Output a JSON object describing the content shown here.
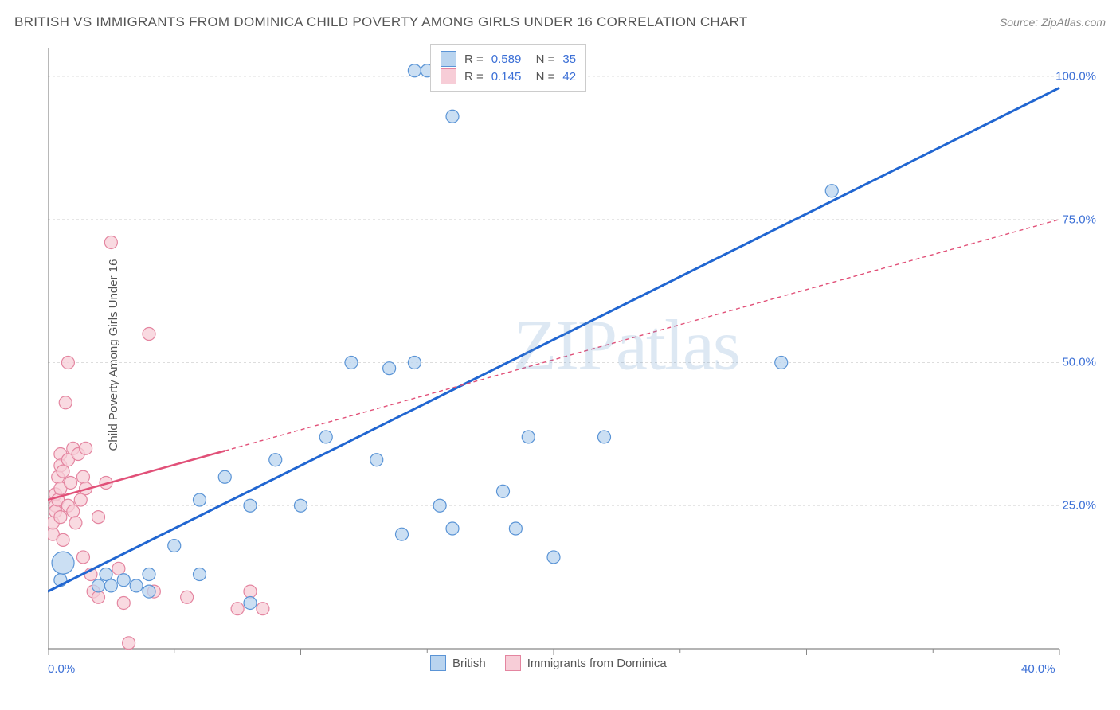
{
  "header": {
    "title": "BRITISH VS IMMIGRANTS FROM DOMINICA CHILD POVERTY AMONG GIRLS UNDER 16 CORRELATION CHART",
    "source": "Source: ZipAtlas.com"
  },
  "watermark": {
    "z": "ZIP",
    "a": "atlas"
  },
  "chart": {
    "type": "scatter",
    "ylabel": "Child Poverty Among Girls Under 16",
    "xlim": [
      0,
      40
    ],
    "ylim": [
      0,
      105
    ],
    "xticks": [
      0,
      10,
      20,
      30,
      40
    ],
    "xtick_labels": [
      "0.0%",
      "",
      "",
      "",
      "40.0%"
    ],
    "yticks": [
      25,
      50,
      75,
      100
    ],
    "ytick_labels": [
      "25.0%",
      "50.0%",
      "75.0%",
      "100.0%"
    ],
    "background_color": "#ffffff",
    "grid_color": "#dddddd",
    "axis_color": "#888888",
    "marker_radius": 8,
    "marker_stroke_width": 1.2,
    "series": [
      {
        "name": "British",
        "fill": "#b9d4ef",
        "stroke": "#5a94d6",
        "line_color": "#2166d1",
        "line_width": 3,
        "line_dash_ext": "4,4",
        "R": "0.589",
        "N": "35",
        "points": [
          [
            0.5,
            12
          ],
          [
            0.6,
            15,
            14
          ],
          [
            2,
            11
          ],
          [
            2.3,
            13
          ],
          [
            2.5,
            11
          ],
          [
            3,
            12
          ],
          [
            3.5,
            11
          ],
          [
            4,
            13
          ],
          [
            4,
            10
          ],
          [
            5,
            18
          ],
          [
            6,
            13
          ],
          [
            6,
            26
          ],
          [
            7,
            30
          ],
          [
            8,
            25
          ],
          [
            8,
            8
          ],
          [
            9,
            33
          ],
          [
            10,
            25
          ],
          [
            11,
            37
          ],
          [
            12,
            50
          ],
          [
            13,
            33
          ],
          [
            13.5,
            49
          ],
          [
            14,
            20
          ],
          [
            14.5,
            50
          ],
          [
            14.5,
            101
          ],
          [
            15,
            101
          ],
          [
            15.5,
            25
          ],
          [
            16,
            21
          ],
          [
            16,
            93
          ],
          [
            18,
            27.5
          ],
          [
            18.5,
            21
          ],
          [
            19,
            37
          ],
          [
            20,
            16
          ],
          [
            22,
            37
          ],
          [
            29,
            50
          ],
          [
            31,
            80
          ]
        ],
        "trend": {
          "x1": 0,
          "y1": 10,
          "x2": 40,
          "y2": 98,
          "solid_until_x": 40
        }
      },
      {
        "name": "Immigrants from Dominica",
        "fill": "#f7cdd7",
        "stroke": "#e485a0",
        "line_color": "#e15078",
        "line_width": 2.5,
        "line_dash_ext": "5,4",
        "R": "0.145",
        "N": "42",
        "points": [
          [
            0.2,
            20
          ],
          [
            0.2,
            22
          ],
          [
            0.3,
            25
          ],
          [
            0.3,
            27
          ],
          [
            0.3,
            24
          ],
          [
            0.4,
            30
          ],
          [
            0.4,
            26
          ],
          [
            0.5,
            34
          ],
          [
            0.5,
            32
          ],
          [
            0.5,
            28
          ],
          [
            0.5,
            23
          ],
          [
            0.6,
            19
          ],
          [
            0.6,
            31
          ],
          [
            0.7,
            43
          ],
          [
            0.8,
            25
          ],
          [
            0.8,
            33
          ],
          [
            0.8,
            50
          ],
          [
            0.9,
            29
          ],
          [
            1,
            35
          ],
          [
            1,
            24
          ],
          [
            1.1,
            22
          ],
          [
            1.2,
            34
          ],
          [
            1.3,
            26
          ],
          [
            1.4,
            30
          ],
          [
            1.4,
            16
          ],
          [
            1.5,
            35
          ],
          [
            1.5,
            28
          ],
          [
            1.7,
            13
          ],
          [
            1.8,
            10
          ],
          [
            2,
            23
          ],
          [
            2,
            9
          ],
          [
            2.3,
            29
          ],
          [
            2.5,
            71
          ],
          [
            2.8,
            14
          ],
          [
            3,
            8
          ],
          [
            3.2,
            1
          ],
          [
            4,
            55
          ],
          [
            4.2,
            10
          ],
          [
            5.5,
            9
          ],
          [
            7.5,
            7
          ],
          [
            8,
            10
          ],
          [
            8.5,
            7
          ]
        ],
        "trend": {
          "x1": 0,
          "y1": 26,
          "x2": 40,
          "y2": 75,
          "solid_until_x": 7
        }
      }
    ],
    "series_legend": [
      {
        "label": "British",
        "fill": "#b9d4ef",
        "stroke": "#5a94d6"
      },
      {
        "label": "Immigrants from Dominica",
        "fill": "#f7cdd7",
        "stroke": "#e485a0"
      }
    ]
  }
}
